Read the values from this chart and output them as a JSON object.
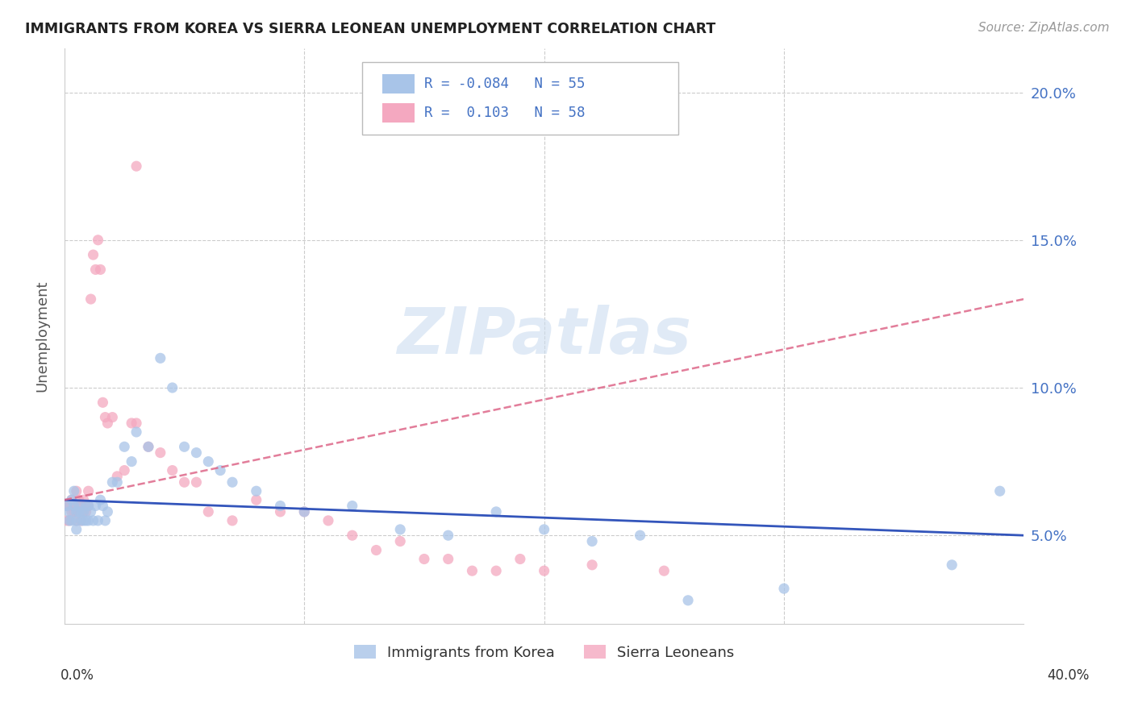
{
  "title": "IMMIGRANTS FROM KOREA VS SIERRA LEONEAN UNEMPLOYMENT CORRELATION CHART",
  "source": "Source: ZipAtlas.com",
  "ylabel": "Unemployment",
  "yticks": [
    0.05,
    0.1,
    0.15,
    0.2
  ],
  "ytick_labels": [
    "5.0%",
    "10.0%",
    "15.0%",
    "20.0%"
  ],
  "xlim": [
    0.0,
    0.4
  ],
  "ylim": [
    0.02,
    0.215
  ],
  "watermark": "ZIPatlas",
  "legend_label1": "Immigrants from Korea",
  "legend_label2": "Sierra Leoneans",
  "korea_color": "#a8c4e8",
  "sierra_color": "#f4a8c0",
  "korea_line_color": "#3355bb",
  "sierra_line_color": "#dd6688",
  "korea_line": [
    0.062,
    0.05
  ],
  "sierra_line": [
    0.062,
    0.13
  ],
  "korea_scatter_x": [
    0.001,
    0.002,
    0.002,
    0.003,
    0.003,
    0.004,
    0.004,
    0.005,
    0.005,
    0.005,
    0.006,
    0.006,
    0.007,
    0.007,
    0.008,
    0.008,
    0.009,
    0.009,
    0.01,
    0.01,
    0.011,
    0.012,
    0.013,
    0.014,
    0.015,
    0.016,
    0.017,
    0.018,
    0.02,
    0.022,
    0.025,
    0.028,
    0.03,
    0.035,
    0.04,
    0.045,
    0.05,
    0.055,
    0.06,
    0.065,
    0.07,
    0.08,
    0.09,
    0.1,
    0.12,
    0.14,
    0.16,
    0.18,
    0.2,
    0.22,
    0.24,
    0.26,
    0.3,
    0.37,
    0.39
  ],
  "korea_scatter_y": [
    0.06,
    0.058,
    0.055,
    0.062,
    0.055,
    0.065,
    0.06,
    0.058,
    0.055,
    0.052,
    0.058,
    0.06,
    0.055,
    0.058,
    0.058,
    0.055,
    0.06,
    0.055,
    0.06,
    0.055,
    0.058,
    0.055,
    0.06,
    0.055,
    0.062,
    0.06,
    0.055,
    0.058,
    0.068,
    0.068,
    0.08,
    0.075,
    0.085,
    0.08,
    0.11,
    0.1,
    0.08,
    0.078,
    0.075,
    0.072,
    0.068,
    0.065,
    0.06,
    0.058,
    0.06,
    0.052,
    0.05,
    0.058,
    0.052,
    0.048,
    0.05,
    0.028,
    0.032,
    0.04,
    0.065
  ],
  "sierra_scatter_x": [
    0.001,
    0.001,
    0.002,
    0.002,
    0.003,
    0.003,
    0.004,
    0.004,
    0.005,
    0.005,
    0.005,
    0.006,
    0.006,
    0.006,
    0.007,
    0.007,
    0.008,
    0.008,
    0.009,
    0.009,
    0.01,
    0.01,
    0.011,
    0.012,
    0.013,
    0.014,
    0.015,
    0.016,
    0.017,
    0.018,
    0.02,
    0.022,
    0.025,
    0.028,
    0.03,
    0.035,
    0.04,
    0.045,
    0.05,
    0.055,
    0.06,
    0.07,
    0.08,
    0.09,
    0.1,
    0.11,
    0.12,
    0.13,
    0.14,
    0.15,
    0.16,
    0.17,
    0.18,
    0.19,
    0.2,
    0.22,
    0.25,
    0.03
  ],
  "sierra_scatter_y": [
    0.06,
    0.055,
    0.06,
    0.055,
    0.058,
    0.062,
    0.058,
    0.06,
    0.055,
    0.058,
    0.065,
    0.06,
    0.058,
    0.062,
    0.06,
    0.055,
    0.058,
    0.062,
    0.058,
    0.06,
    0.065,
    0.06,
    0.13,
    0.145,
    0.14,
    0.15,
    0.14,
    0.095,
    0.09,
    0.088,
    0.09,
    0.07,
    0.072,
    0.088,
    0.088,
    0.08,
    0.078,
    0.072,
    0.068,
    0.068,
    0.058,
    0.055,
    0.062,
    0.058,
    0.058,
    0.055,
    0.05,
    0.045,
    0.048,
    0.042,
    0.042,
    0.038,
    0.038,
    0.042,
    0.038,
    0.04,
    0.038,
    0.175
  ]
}
